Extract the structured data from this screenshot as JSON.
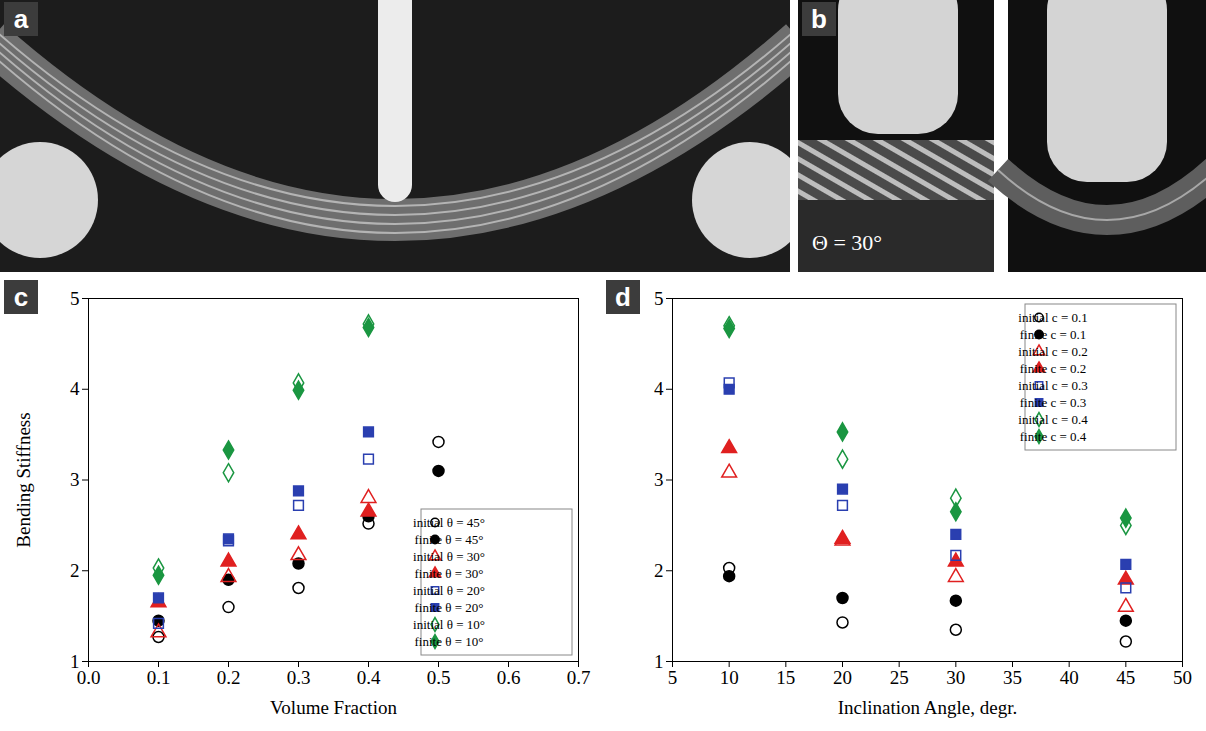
{
  "panels": [
    {
      "type": "photo",
      "letter": "a"
    },
    {
      "type": "photo",
      "letter": "b",
      "annotation": "Θ = 30°"
    }
  ],
  "chart_data": [
    {
      "type": "scatter",
      "letter": "c",
      "xlabel": "Volume Fraction",
      "ylabel": "Bending Stiffness",
      "x": [
        0.1,
        0.2,
        0.3,
        0.4,
        0.5
      ],
      "xlim": [
        0,
        0.7
      ],
      "xticks": [
        {
          "value": 0,
          "label": "0.0"
        },
        0.1,
        0.2,
        0.3,
        0.4,
        0.5,
        0.6,
        0.7
      ],
      "ylim": [
        1,
        5
      ],
      "yticks": [
        1,
        2,
        3,
        4,
        5
      ],
      "legend": "bottom-right",
      "series": [
        {
          "name": "initial θ = 45°",
          "color": "#000000",
          "marker": "open-circle",
          "values": [
            1.27,
            1.6,
            1.81,
            2.52,
            3.42
          ]
        },
        {
          "name": "finite θ = 45°",
          "color": "#000000",
          "marker": "circle",
          "values": [
            1.45,
            1.9,
            2.08,
            2.6,
            3.1
          ]
        },
        {
          "name": "initial θ = 30°",
          "color": "#e02020",
          "marker": "open-triangle",
          "values": [
            1.32,
            1.93,
            2.17,
            2.8,
            null
          ]
        },
        {
          "name": "finite θ = 30°",
          "color": "#e02020",
          "marker": "triangle",
          "values": [
            1.65,
            2.1,
            2.4,
            2.65,
            null
          ]
        },
        {
          "name": "initial θ = 20°",
          "color": "#2a3fb0",
          "marker": "open-square",
          "values": [
            1.42,
            2.33,
            2.72,
            3.23,
            null
          ]
        },
        {
          "name": "finite θ = 20°",
          "color": "#2a3fb0",
          "marker": "square",
          "values": [
            1.7,
            2.35,
            2.88,
            3.53,
            null
          ]
        },
        {
          "name": "initial θ = 10°",
          "color": "#1a9641",
          "marker": "open-diamond",
          "values": [
            2.03,
            3.08,
            4.07,
            4.72,
            null
          ]
        },
        {
          "name": "finite θ = 10°",
          "color": "#1a9641",
          "marker": "diamond",
          "values": [
            1.95,
            3.33,
            3.99,
            4.68,
            null
          ]
        }
      ]
    },
    {
      "type": "scatter",
      "letter": "d",
      "xlabel": "Inclination Angle, degr.",
      "x": [
        10,
        20,
        30,
        45
      ],
      "xlim": [
        5,
        50
      ],
      "xticks": [
        5,
        10,
        15,
        20,
        25,
        30,
        35,
        40,
        45,
        50
      ],
      "ylim": [
        1,
        5
      ],
      "yticks": [
        1,
        2,
        3,
        4,
        5
      ],
      "legend": "top-right",
      "series": [
        {
          "name": "initial c = 0.1",
          "color": "#000000",
          "marker": "open-circle",
          "values": [
            2.03,
            1.43,
            1.35,
            1.22
          ]
        },
        {
          "name": "finite c = 0.1",
          "color": "#000000",
          "marker": "circle",
          "values": [
            1.94,
            1.7,
            1.67,
            1.45
          ]
        },
        {
          "name": "initial c = 0.2",
          "color": "#e02020",
          "marker": "open-triangle",
          "values": [
            3.08,
            2.33,
            1.93,
            1.6
          ]
        },
        {
          "name": "finite c = 0.2",
          "color": "#e02020",
          "marker": "triangle",
          "values": [
            3.35,
            2.35,
            2.1,
            1.9
          ]
        },
        {
          "name": "initial c = 0.3",
          "color": "#2a3fb0",
          "marker": "open-square",
          "values": [
            4.07,
            2.72,
            2.17,
            1.81
          ]
        },
        {
          "name": "finite c = 0.3",
          "color": "#2a3fb0",
          "marker": "square",
          "values": [
            4.0,
            2.9,
            2.4,
            2.07
          ]
        },
        {
          "name": "initial c = 0.4",
          "color": "#1a9641",
          "marker": "open-diamond",
          "values": [
            4.7,
            3.23,
            2.8,
            2.5
          ]
        },
        {
          "name": "finite c = 0.4",
          "color": "#1a9641",
          "marker": "diamond",
          "values": [
            4.67,
            3.53,
            2.65,
            2.58
          ]
        }
      ]
    }
  ]
}
